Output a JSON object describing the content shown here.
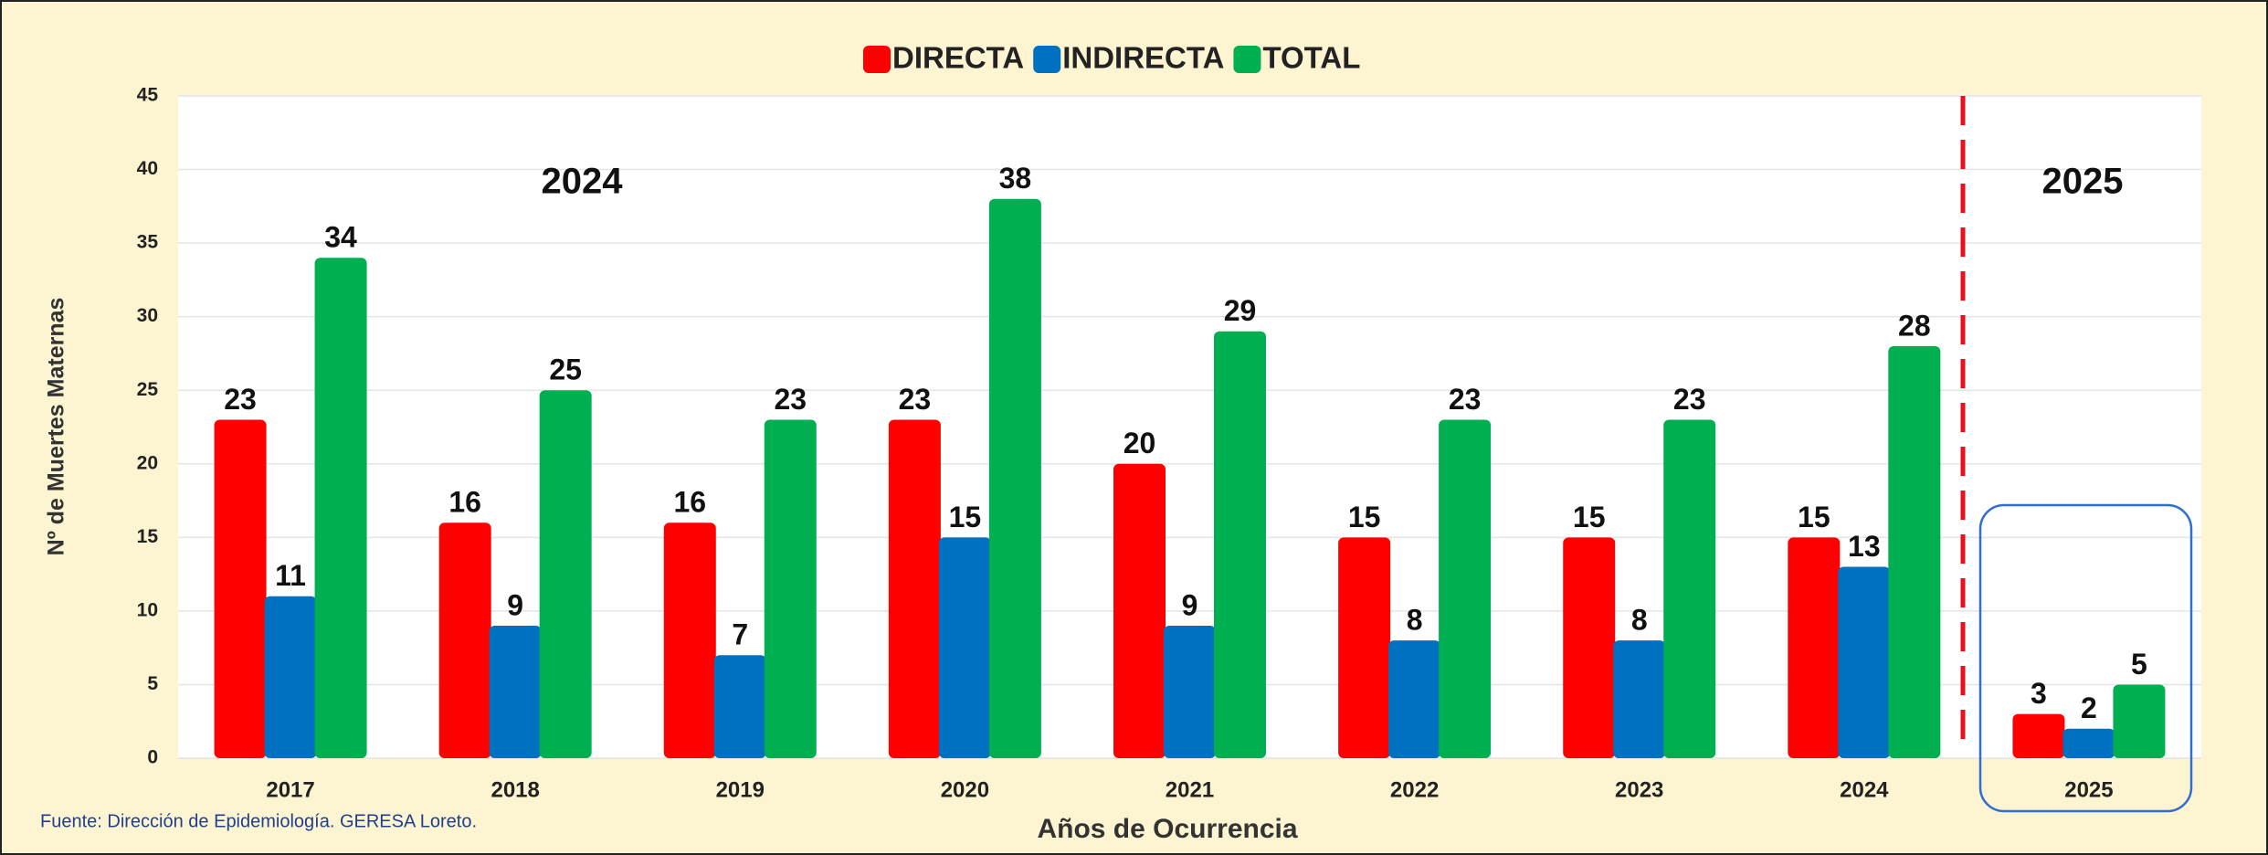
{
  "chart_data": {
    "type": "bar",
    "legend": "top",
    "x_label": "Años de Ocurrencia",
    "y_label": "Nº de Muertes Maternas",
    "annotations": [
      "2024",
      "2025"
    ],
    "source": "Fuente: Dirección de Epidemiología. GERESA Loreto.",
    "categories": [
      "2017",
      "2018",
      "2019",
      "2020",
      "2021",
      "2022",
      "2023",
      "2024",
      "2025"
    ],
    "series": [
      {
        "name": "DIRECTA",
        "color": "#ff0000",
        "values": [
          23,
          16,
          16,
          23,
          20,
          15,
          15,
          15,
          3
        ]
      },
      {
        "name": "INDIRECTA",
        "color": "#0070c0",
        "values": [
          11,
          9,
          7,
          15,
          9,
          8,
          8,
          13,
          2
        ]
      },
      {
        "name": "TOTAL",
        "color": "#00b050",
        "values": [
          34,
          25,
          23,
          38,
          29,
          23,
          23,
          28,
          5
        ]
      }
    ],
    "ylim": [
      0,
      45
    ],
    "yticks": [
      0,
      5,
      10,
      15,
      20,
      25,
      30,
      35,
      40,
      45
    ],
    "grid": true
  }
}
